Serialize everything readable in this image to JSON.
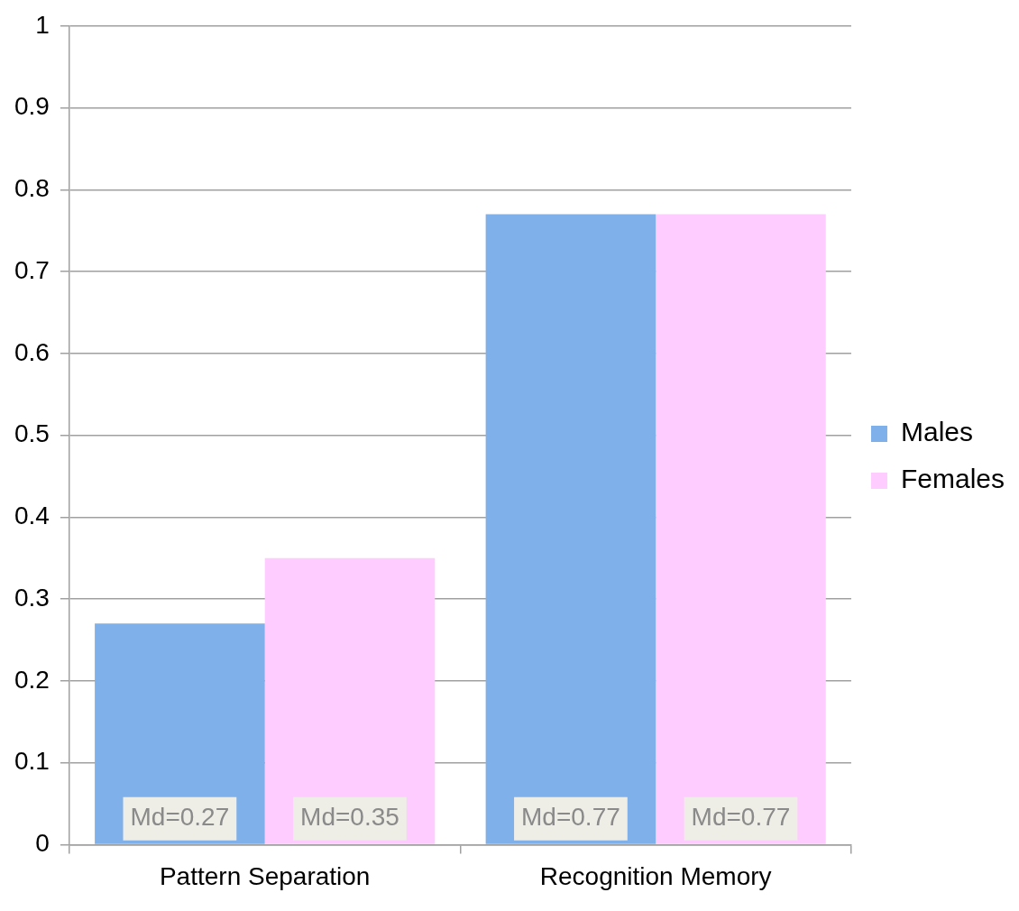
{
  "chart_data": {
    "type": "bar",
    "categories": [
      "Pattern Separation",
      "Recognition Memory"
    ],
    "series": [
      {
        "name": "Males",
        "color": "#7fb0ea",
        "values": [
          0.27,
          0.77
        ],
        "value_labels": [
          "Md=0.27",
          "Md=0.77"
        ]
      },
      {
        "name": "Females",
        "color": "#ffccff",
        "values": [
          0.35,
          0.77
        ],
        "value_labels": [
          "Md=0.35",
          "Md=0.77"
        ]
      }
    ],
    "ylim": [
      0,
      1
    ],
    "yticks": [
      0,
      0.1,
      0.2,
      0.3,
      0.4,
      0.5,
      0.6,
      0.7,
      0.8,
      0.9,
      1
    ],
    "grid": "y",
    "legend": "right"
  }
}
